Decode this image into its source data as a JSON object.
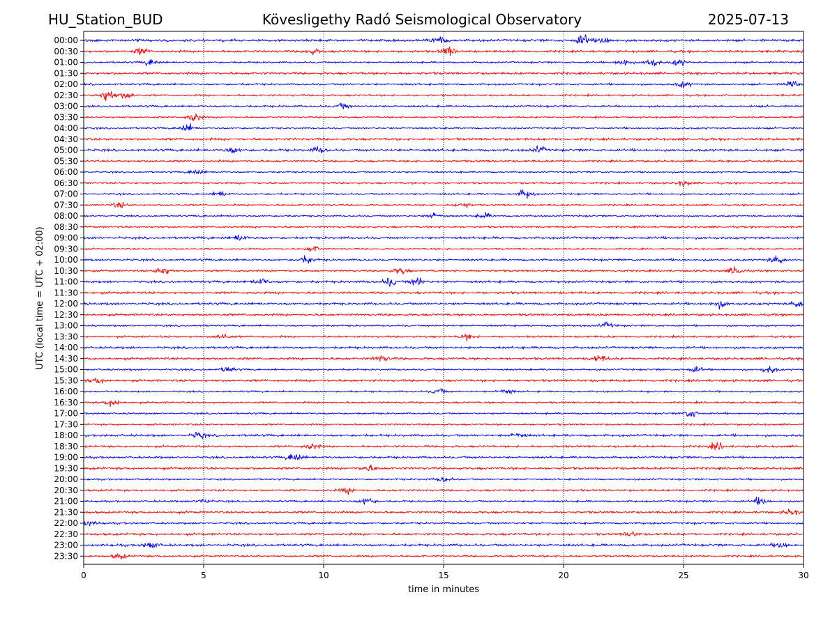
{
  "header": {
    "station": "HU_Station_BUD",
    "observatory": "Kövesligethy Radó Seismological Observatory",
    "date": "2025-07-13"
  },
  "chart_data": {
    "type": "line",
    "title": "Kövesligethy Radó Seismological Observatory",
    "xlabel": "time in minutes",
    "ylabel": "UTC (local time = UTC + 02:00)",
    "xlim": [
      0,
      30
    ],
    "x_ticks": [
      0,
      5,
      10,
      15,
      20,
      25,
      30
    ],
    "x_tick_labels": [
      "0",
      "5",
      "10",
      "15",
      "20",
      "25",
      "30"
    ],
    "grid": {
      "x": true,
      "y": false,
      "style": "dotted"
    },
    "row_labels": [
      "00:00",
      "00:30",
      "01:00",
      "01:30",
      "02:00",
      "02:30",
      "03:00",
      "03:30",
      "04:00",
      "04:30",
      "05:00",
      "05:30",
      "06:00",
      "06:30",
      "07:00",
      "07:30",
      "08:00",
      "08:30",
      "09:00",
      "09:30",
      "10:00",
      "10:30",
      "11:00",
      "11:30",
      "12:00",
      "12:30",
      "13:00",
      "13:30",
      "14:00",
      "14:30",
      "15:00",
      "15:30",
      "16:00",
      "16:30",
      "17:00",
      "17:30",
      "18:00",
      "18:30",
      "19:00",
      "19:30",
      "20:00",
      "20:30",
      "21:00",
      "21:30",
      "22:00",
      "22:30",
      "23:00",
      "23:30"
    ],
    "colors": [
      "#0000ff",
      "#ff0000"
    ],
    "bursts": [
      [
        {
          "t": 14.8,
          "a": 1.6
        },
        {
          "t": 20.8,
          "a": 2.0
        },
        {
          "t": 21.7,
          "a": 1.3
        }
      ],
      [
        {
          "t": 2.4,
          "a": 1.3
        },
        {
          "t": 9.5,
          "a": 1.1
        },
        {
          "t": 15.2,
          "a": 1.8
        }
      ],
      [
        {
          "t": 2.8,
          "a": 1.3
        },
        {
          "t": 22.5,
          "a": 1.5
        },
        {
          "t": 23.7,
          "a": 1.6
        },
        {
          "t": 24.8,
          "a": 1.2
        }
      ],
      [],
      [
        {
          "t": 25.0,
          "a": 1.1
        },
        {
          "t": 29.5,
          "a": 1.3
        }
      ],
      [
        {
          "t": 1.0,
          "a": 2.6
        },
        {
          "t": 1.8,
          "a": 1.3
        }
      ],
      [
        {
          "t": 10.8,
          "a": 1.1
        }
      ],
      [
        {
          "t": 4.6,
          "a": 1.8
        }
      ],
      [
        {
          "t": 4.3,
          "a": 1.6
        }
      ],
      [],
      [
        {
          "t": 6.2,
          "a": 1.2
        },
        {
          "t": 9.8,
          "a": 1.1
        },
        {
          "t": 19.0,
          "a": 1.2
        }
      ],
      [],
      [
        {
          "t": 4.7,
          "a": 1.0
        }
      ],
      [
        {
          "t": 25.0,
          "a": 1.0
        }
      ],
      [
        {
          "t": 5.7,
          "a": 1.1
        },
        {
          "t": 18.4,
          "a": 1.8
        }
      ],
      [
        {
          "t": 1.5,
          "a": 1.1
        },
        {
          "t": 15.8,
          "a": 1.0
        }
      ],
      [
        {
          "t": 14.6,
          "a": 1.1
        },
        {
          "t": 16.7,
          "a": 1.1
        }
      ],
      [],
      [
        {
          "t": 6.5,
          "a": 1.2
        }
      ],
      [
        {
          "t": 9.6,
          "a": 1.2
        }
      ],
      [
        {
          "t": 9.3,
          "a": 1.4
        },
        {
          "t": 28.9,
          "a": 1.6
        }
      ],
      [
        {
          "t": 3.3,
          "a": 1.7
        },
        {
          "t": 13.2,
          "a": 1.3
        },
        {
          "t": 27.2,
          "a": 1.8
        }
      ],
      [
        {
          "t": 7.4,
          "a": 1.3
        },
        {
          "t": 12.8,
          "a": 1.6
        },
        {
          "t": 13.9,
          "a": 1.7
        }
      ],
      [],
      [
        {
          "t": 26.5,
          "a": 1.2
        },
        {
          "t": 29.8,
          "a": 1.3
        }
      ],
      [],
      [
        {
          "t": 21.8,
          "a": 1.1
        }
      ],
      [
        {
          "t": 5.8,
          "a": 1.1
        },
        {
          "t": 16.0,
          "a": 1.1
        }
      ],
      [],
      [
        {
          "t": 12.4,
          "a": 1.2
        },
        {
          "t": 21.5,
          "a": 1.4
        }
      ],
      [
        {
          "t": 6.0,
          "a": 1.1
        },
        {
          "t": 25.5,
          "a": 1.1
        },
        {
          "t": 28.6,
          "a": 1.4
        }
      ],
      [
        {
          "t": 0.6,
          "a": 1.1
        }
      ],
      [
        {
          "t": 14.8,
          "a": 1.1
        },
        {
          "t": 17.6,
          "a": 1.2
        }
      ],
      [
        {
          "t": 1.2,
          "a": 1.5
        }
      ],
      [
        {
          "t": 25.3,
          "a": 1.5
        }
      ],
      [],
      [
        {
          "t": 4.8,
          "a": 1.1
        },
        {
          "t": 18.1,
          "a": 1.0
        }
      ],
      [
        {
          "t": 9.5,
          "a": 1.2
        },
        {
          "t": 26.4,
          "a": 1.4
        }
      ],
      [
        {
          "t": 8.8,
          "a": 1.8
        }
      ],
      [
        {
          "t": 11.9,
          "a": 1.2
        }
      ],
      [
        {
          "t": 15.0,
          "a": 1.1
        }
      ],
      [
        {
          "t": 11.0,
          "a": 1.1
        }
      ],
      [
        {
          "t": 5.0,
          "a": 1.1
        },
        {
          "t": 11.8,
          "a": 1.5
        },
        {
          "t": 28.2,
          "a": 1.4
        }
      ],
      [
        {
          "t": 29.5,
          "a": 1.2
        }
      ],
      [
        {
          "t": 0.2,
          "a": 1.1
        }
      ],
      [
        {
          "t": 22.8,
          "a": 1.0
        }
      ],
      [
        {
          "t": 2.8,
          "a": 1.2
        },
        {
          "t": 29.1,
          "a": 1.1
        }
      ],
      [
        {
          "t": 1.5,
          "a": 1.0
        }
      ]
    ]
  }
}
